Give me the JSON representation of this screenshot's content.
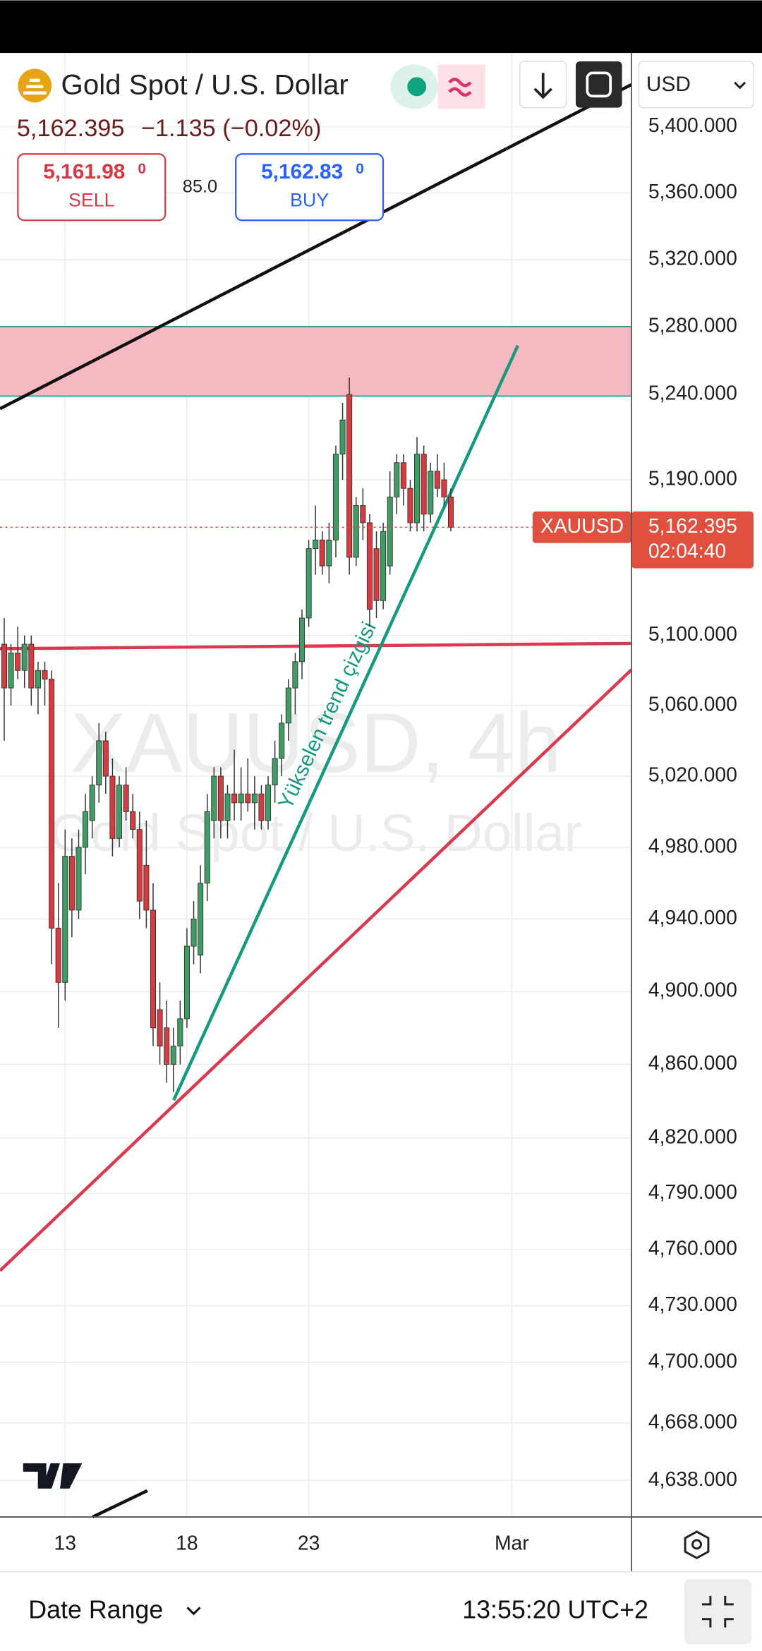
{
  "header": {
    "title": "Gold Spot / U.S. Dollar",
    "last": "5,162.395",
    "change": "−1.135 (−0.02%)",
    "sell_price": "5,161.98",
    "sell_price_sub": "0",
    "sell_label": "SELL",
    "spread": "85.0",
    "buy_price": "5,162.83",
    "buy_price_sub": "0",
    "buy_label": "BUY",
    "currency": "USD"
  },
  "footer": {
    "date_range": "Date Range",
    "clock": "13:55:20 UTC+2"
  },
  "chart_data": {
    "type": "candlestick",
    "title": "Gold Spot / U.S. Dollar",
    "symbol": "XAUUSD",
    "watermark": "XAUUSD, 4h",
    "trend_label": "Yükselen trend çizgisi",
    "last_price_label": "5,162.395",
    "countdown": "02:04:40",
    "categories": [
      null,
      null,
      null,
      null,
      null,
      null,
      null,
      null,
      null,
      "13",
      null,
      null,
      null,
      null,
      null,
      null,
      null,
      null,
      null,
      null,
      null,
      null,
      null,
      null,
      null,
      null,
      null,
      "18",
      null,
      null,
      null,
      null,
      null,
      null,
      null,
      null,
      null,
      null,
      null,
      null,
      null,
      null,
      null,
      null,
      null,
      "23",
      null,
      null,
      null,
      null,
      null,
      null,
      null,
      null,
      null,
      null,
      null,
      null,
      null,
      null,
      null,
      null,
      null,
      null,
      null,
      null,
      null,
      null,
      null,
      null,
      null,
      null,
      null,
      null,
      null,
      "Mar",
      null,
      null,
      null,
      null,
      null,
      null,
      null,
      null,
      null,
      null,
      null,
      null,
      null,
      null,
      null,
      null,
      null
    ],
    "open": [
      5095,
      5070,
      5090,
      5080,
      5095,
      5070,
      5080,
      5075,
      4935,
      4905,
      4975,
      4945,
      4980,
      4995,
      5015,
      5040,
      5020,
      4985,
      5015,
      5000,
      4990,
      4970,
      4945,
      4890,
      4880,
      4860,
      4870,
      4885,
      4925,
      4920,
      4960,
      4995,
      5020,
      4995,
      5010,
      5005,
      5010,
      5005,
      5010,
      4995,
      5015,
      5030,
      5050,
      5070,
      5085,
      5110,
      5150,
      5155,
      5140,
      5155,
      5205,
      5240,
      5145,
      5175,
      5165,
      5150,
      5120,
      5140,
      5180,
      5200,
      5185,
      5165,
      5205,
      5170,
      5195,
      5190,
      5180,
      null,
      null,
      null,
      null,
      null,
      null,
      null,
      null,
      null,
      null,
      null,
      null,
      null,
      null,
      null,
      null,
      null,
      null,
      null,
      null,
      null,
      null,
      null,
      null,
      null,
      null
    ],
    "high": [
      5110,
      5095,
      5105,
      5100,
      5100,
      5085,
      5085,
      5080,
      4960,
      4990,
      4985,
      4990,
      5010,
      5020,
      5050,
      5045,
      5030,
      5020,
      5025,
      5010,
      5000,
      4995,
      4960,
      4905,
      4895,
      4880,
      4895,
      4935,
      4950,
      4970,
      5010,
      5025,
      5025,
      5015,
      5035,
      5025,
      5030,
      5020,
      5015,
      5020,
      5040,
      5055,
      5075,
      5090,
      5115,
      5155,
      5175,
      5160,
      5165,
      5210,
      5235,
      5250,
      5180,
      5185,
      5170,
      5160,
      5165,
      5195,
      5205,
      5205,
      5190,
      5215,
      5210,
      5200,
      5205,
      5200,
      5185,
      null,
      null,
      null,
      null,
      null,
      null,
      null,
      null,
      null,
      null,
      null,
      null,
      null,
      null,
      null,
      null,
      null,
      null,
      null,
      null,
      null,
      null,
      null,
      null,
      null,
      null
    ],
    "low": [
      5040,
      5060,
      5075,
      5070,
      5060,
      5055,
      5060,
      4915,
      4880,
      4895,
      4930,
      4940,
      4965,
      4985,
      5005,
      5010,
      4975,
      4980,
      4995,
      4985,
      4940,
      4935,
      4870,
      4860,
      4850,
      4845,
      4860,
      4880,
      4915,
      4910,
      4950,
      4985,
      4985,
      4985,
      4995,
      4995,
      5000,
      4990,
      4990,
      4990,
      5005,
      5020,
      5040,
      5055,
      5075,
      5105,
      5135,
      5135,
      5130,
      5145,
      5190,
      5135,
      5140,
      5155,
      5105,
      5110,
      5115,
      5135,
      5170,
      5175,
      5160,
      5160,
      5160,
      5165,
      5180,
      5175,
      5160,
      null,
      null,
      null,
      null,
      null,
      null,
      null,
      null,
      null,
      null,
      null,
      null,
      null,
      null,
      null,
      null,
      null,
      null,
      null,
      null,
      null,
      null,
      null,
      null,
      null,
      null
    ],
    "close": [
      5070,
      5090,
      5080,
      5095,
      5070,
      5080,
      5075,
      4935,
      4905,
      4975,
      4945,
      4980,
      5000,
      5015,
      5040,
      5020,
      4985,
      5015,
      5000,
      4990,
      4950,
      4945,
      4880,
      4870,
      4860,
      4870,
      4885,
      4925,
      4940,
      4960,
      5000,
      5020,
      4995,
      5010,
      5005,
      5010,
      5005,
      5010,
      4995,
      5015,
      5030,
      5050,
      5070,
      5085,
      5110,
      5150,
      5155,
      5140,
      5155,
      5205,
      5225,
      5145,
      5175,
      5165,
      5115,
      5120,
      5160,
      5180,
      5200,
      5185,
      5165,
      5205,
      5170,
      5195,
      5185,
      5180,
      5162.395,
      null,
      null,
      null,
      null,
      null,
      null,
      null,
      null,
      null,
      null,
      null,
      null,
      null,
      null,
      null,
      null,
      null,
      null,
      null,
      null,
      null,
      null,
      null,
      null,
      null,
      null
    ],
    "up_color": "#3f9c63",
    "down_color": "#d43c3f",
    "price_line_color": "#e0503f",
    "ylim": [
      4619,
      5445
    ],
    "log_scale": true,
    "grid": true,
    "yticks": [
      {
        "value": 5400,
        "label": "5,400.000"
      },
      {
        "value": 5360,
        "label": "5,360.000"
      },
      {
        "value": 5320,
        "label": "5,320.000"
      },
      {
        "value": 5280,
        "label": "5,280.000"
      },
      {
        "value": 5240,
        "label": "5,240.000"
      },
      {
        "value": 5190,
        "label": "5,190.000"
      },
      {
        "value": 5100,
        "label": "5,100.000"
      },
      {
        "value": 5060,
        "label": "5,060.000"
      },
      {
        "value": 5020,
        "label": "5,020.000"
      },
      {
        "value": 4980,
        "label": "4,980.000"
      },
      {
        "value": 4940,
        "label": "4,940.000"
      },
      {
        "value": 4900,
        "label": "4,900.000"
      },
      {
        "value": 4860,
        "label": "4,860.000"
      },
      {
        "value": 4820,
        "label": "4,820.000"
      },
      {
        "value": 4790,
        "label": "4,790.000"
      },
      {
        "value": 4760,
        "label": "4,760.000"
      },
      {
        "value": 4730,
        "label": "4,730.000"
      },
      {
        "value": 4700,
        "label": "4,700.000"
      },
      {
        "value": 4668,
        "label": "4,668.000"
      },
      {
        "value": 4638,
        "label": "4,638.000"
      }
    ]
  }
}
